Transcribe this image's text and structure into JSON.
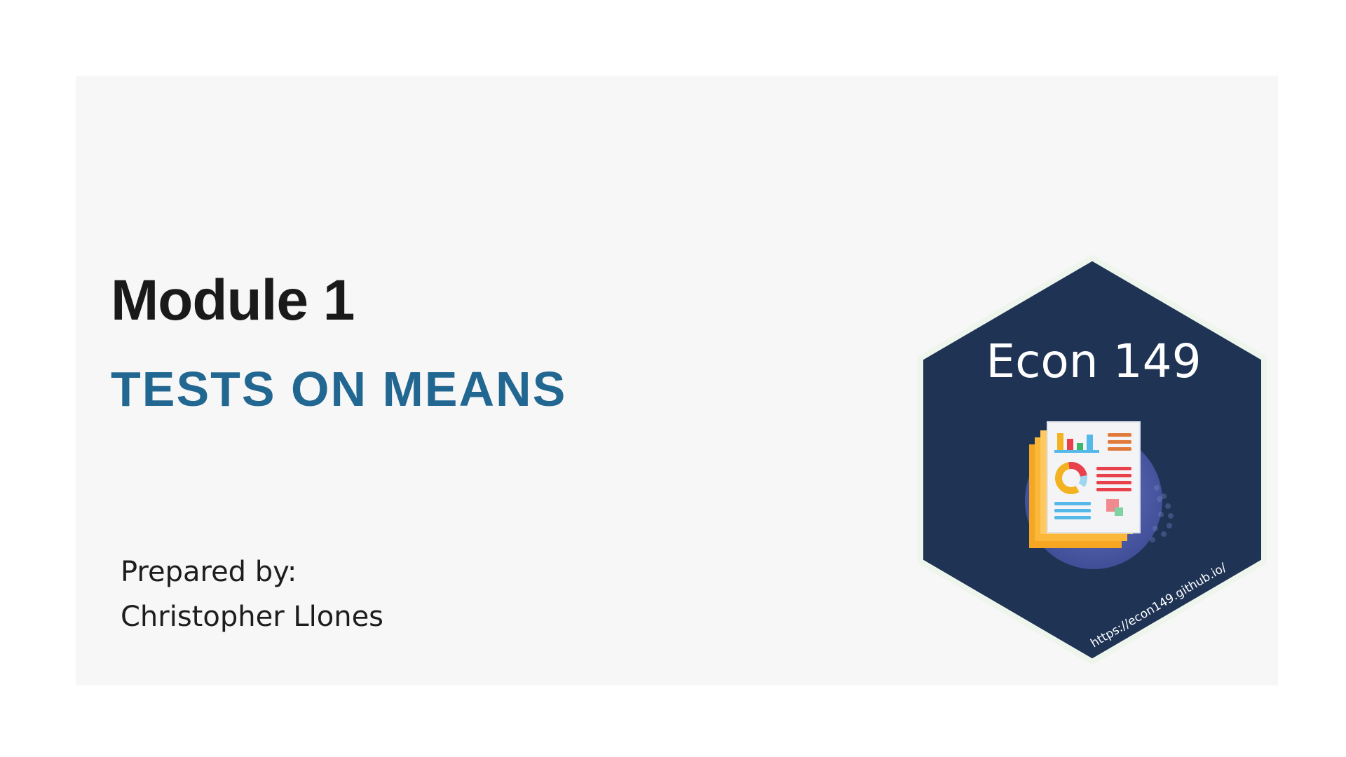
{
  "slide": {
    "title": "Module 1",
    "subtitle": "TESTS ON MEANS",
    "prepared_label": "Prepared by:",
    "author": "Christopher Llones"
  },
  "logo": {
    "course": "Econ 149",
    "url": "https://econ149.github.io/",
    "icon": "report-document-icon"
  },
  "colors": {
    "title": "#1a1a1a",
    "subtitle": "#226791",
    "hex_fill": "#1f3355",
    "hex_border": "#eef5ec",
    "panel_bg": "#f6f7f6"
  }
}
